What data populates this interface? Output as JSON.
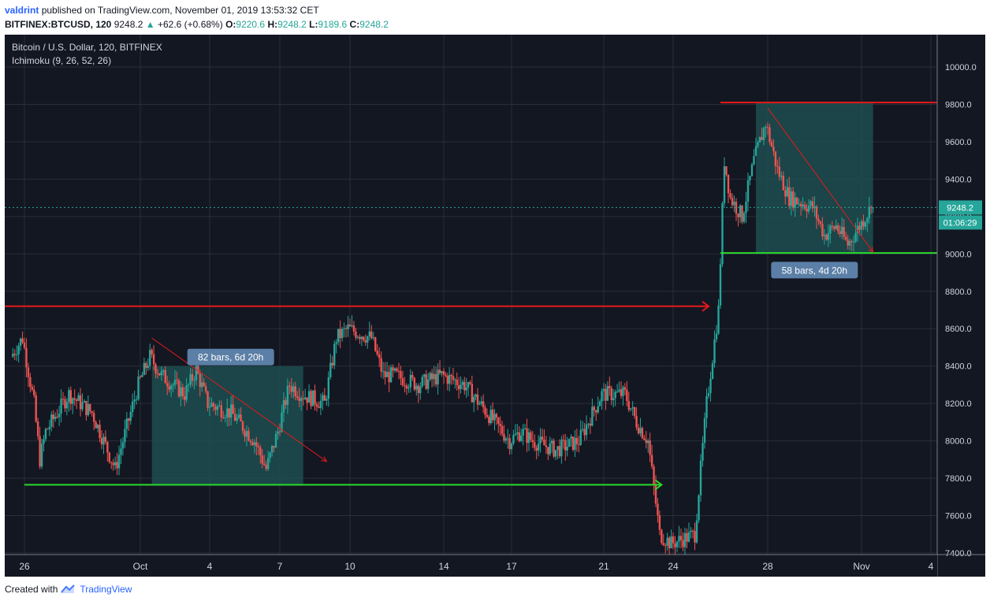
{
  "header": {
    "author": "valdrint",
    "published_text": "published on TradingView.com, November 01, 2019 13:53:32 CET",
    "symbol_line": "BITFINEX:BTCUSD, 120",
    "last_price": "9248.2",
    "change": "+62.6 (+0.68%)",
    "o_label": "O:",
    "o_value": "9220.6",
    "h_label": "H:",
    "h_value": "9248.2",
    "l_label": "L:",
    "l_value": "9189.6",
    "c_label": "C:",
    "c_value": "9248.2"
  },
  "legend": {
    "title": "Bitcoin / U.S. Dollar, 120, BITFINEX",
    "indicator": "Ichimoku (9, 26, 52, 26)"
  },
  "footer": {
    "created_with": "Created with",
    "brand": "TradingView"
  },
  "colors": {
    "background": "#131722",
    "grid": "#2a2e39",
    "up": "#26a69a",
    "down": "#ef5350",
    "red_line": "#e5191b",
    "green_line": "#2bd82b",
    "zone": "#1d4d4f",
    "label_bg": "#5b7fa6",
    "price_tag": "#26a69a"
  },
  "chart_data": {
    "type": "candlestick",
    "title": "Bitcoin / U.S. Dollar, 120, BITFINEX",
    "indicator": "Ichimoku (9, 26, 52, 26)",
    "ylim": [
      7400,
      10300
    ],
    "y_ticks": [
      "10000.0",
      "9800.0",
      "9600.0",
      "9400.0",
      "9200.0",
      "9000.0",
      "8800.0",
      "8600.0",
      "8400.0",
      "8200.0",
      "8000.0",
      "7800.0",
      "7600.0",
      "7400.0"
    ],
    "x_ticks": [
      "26",
      "Oct",
      "4",
      "7",
      "10",
      "14",
      "17",
      "21",
      "24",
      "28",
      "Nov",
      "4"
    ],
    "path_keypoints": [
      {
        "date": "Sep 25 12:00",
        "price": 8450
      },
      {
        "date": "Sep 26 00:00",
        "price": 8550
      },
      {
        "date": "Sep 26 12:00",
        "price": 8200
      },
      {
        "date": "Sep 26 18:00",
        "price": 7900
      },
      {
        "date": "Sep 27 00:00",
        "price": 8050
      },
      {
        "date": "Sep 28 00:00",
        "price": 8250
      },
      {
        "date": "Sep 29 00:00",
        "price": 8150
      },
      {
        "date": "Sep 30 00:00",
        "price": 7850
      },
      {
        "date": "Oct 1 00:00",
        "price": 8300
      },
      {
        "date": "Oct 1 12:00",
        "price": 8450
      },
      {
        "date": "Oct 2 00:00",
        "price": 8350
      },
      {
        "date": "Oct 3 00:00",
        "price": 8250
      },
      {
        "date": "Oct 3 12:00",
        "price": 8380
      },
      {
        "date": "Oct 4 00:00",
        "price": 8200
      },
      {
        "date": "Oct 5 00:00",
        "price": 8150
      },
      {
        "date": "Oct 6 00:00",
        "price": 8000
      },
      {
        "date": "Oct 6 12:00",
        "price": 7850
      },
      {
        "date": "Oct 7 00:00",
        "price": 8050
      },
      {
        "date": "Oct 7 12:00",
        "price": 8300
      },
      {
        "date": "Oct 8 00:00",
        "price": 8250
      },
      {
        "date": "Oct 9 00:00",
        "price": 8200
      },
      {
        "date": "Oct 9 12:00",
        "price": 8550
      },
      {
        "date": "Oct 10 00:00",
        "price": 8600
      },
      {
        "date": "Oct 11 00:00",
        "price": 8550
      },
      {
        "date": "Oct 11 12:00",
        "price": 8350
      },
      {
        "date": "Oct 12 00:00",
        "price": 8350
      },
      {
        "date": "Oct 13 00:00",
        "price": 8300
      },
      {
        "date": "Oct 14 00:00",
        "price": 8350
      },
      {
        "date": "Oct 15 00:00",
        "price": 8300
      },
      {
        "date": "Oct 16 00:00",
        "price": 8150
      },
      {
        "date": "Oct 17 00:00",
        "price": 8000
      },
      {
        "date": "Oct 17 12:00",
        "price": 8050
      },
      {
        "date": "Oct 18 00:00",
        "price": 8000
      },
      {
        "date": "Oct 19 00:00",
        "price": 7950
      },
      {
        "date": "Oct 20 00:00",
        "price": 8000
      },
      {
        "date": "Oct 21 00:00",
        "price": 8250
      },
      {
        "date": "Oct 22 00:00",
        "price": 8250
      },
      {
        "date": "Oct 22 12:00",
        "price": 8100
      },
      {
        "date": "Oct 23 00:00",
        "price": 8000
      },
      {
        "date": "Oct 23 12:00",
        "price": 7500
      },
      {
        "date": "Oct 24 00:00",
        "price": 7450
      },
      {
        "date": "Oct 25 00:00",
        "price": 7500
      },
      {
        "date": "Oct 25 12:00",
        "price": 8200
      },
      {
        "date": "Oct 26 00:00",
        "price": 8700
      },
      {
        "date": "Oct 26 06:00",
        "price": 9500
      },
      {
        "date": "Oct 26 12:00",
        "price": 9300
      },
      {
        "date": "Oct 27 00:00",
        "price": 9200
      },
      {
        "date": "Oct 27 12:00",
        "price": 9500
      },
      {
        "date": "Oct 28 00:00",
        "price": 9700
      },
      {
        "date": "Oct 28 12:00",
        "price": 9450
      },
      {
        "date": "Oct 29 00:00",
        "price": 9300
      },
      {
        "date": "Oct 30 00:00",
        "price": 9250
      },
      {
        "date": "Oct 30 12:00",
        "price": 9100
      },
      {
        "date": "Oct 31 00:00",
        "price": 9150
      },
      {
        "date": "Oct 31 12:00",
        "price": 9050
      },
      {
        "date": "Nov 1 00:00",
        "price": 9150
      },
      {
        "date": "Nov 1 12:00",
        "price": 9248.2
      }
    ],
    "price_line": {
      "price": 9248.2,
      "label": "9248.2",
      "countdown": "01:06:29"
    },
    "horizontal_lines": [
      {
        "color": "red",
        "price": 9810,
        "from": "Oct 26",
        "to": "Nov 4"
      },
      {
        "color": "green",
        "price": 9005,
        "from": "Oct 26",
        "to": "Nov 4"
      }
    ],
    "arrows": [
      {
        "color": "red",
        "price": 8720,
        "from": "Sep 25",
        "to": "Oct 25 12:00"
      },
      {
        "color": "green",
        "price": 7765,
        "from": "Sep 26",
        "to": "Oct 23 12:00"
      }
    ],
    "trend_lines": [
      {
        "from": {
          "date": "Oct 1 12:00",
          "price": 8550
        },
        "to": {
          "date": "Oct 9",
          "price": 7890
        }
      },
      {
        "from": {
          "date": "Oct 28 00:00",
          "price": 9780
        },
        "to": {
          "date": "Nov 1 12:00",
          "price": 9010
        }
      }
    ],
    "ranges": [
      {
        "from": "Oct 1 12:00",
        "to": "Oct 8",
        "price_low": 7760,
        "price_high": 8400,
        "label": "82 bars, 6d 20h"
      },
      {
        "from": "Oct 27 12:00",
        "to": "Nov 1 12:00",
        "price_low": 9000,
        "price_high": 9810,
        "label": "58 bars, 4d 20h"
      }
    ]
  }
}
